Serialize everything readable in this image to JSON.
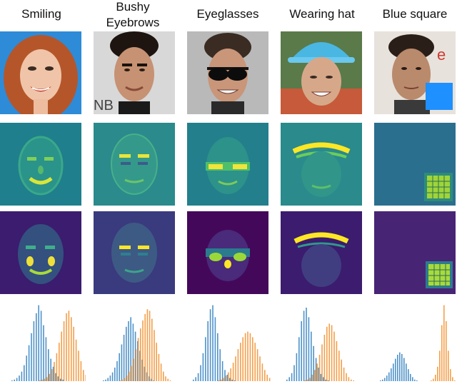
{
  "columns": [
    {
      "key": "smiling",
      "title": "Smiling",
      "title_lines": [
        "Smiling"
      ]
    },
    {
      "key": "bushy",
      "title": "Bushy Eyebrows",
      "title_lines": [
        "Bushy",
        "Eyebrows"
      ]
    },
    {
      "key": "eyeglasses",
      "title": "Eyeglasses",
      "title_lines": [
        "Eyeglasses"
      ]
    },
    {
      "key": "hat",
      "title": "Wearing hat",
      "title_lines": [
        "Wearing hat"
      ]
    },
    {
      "key": "blue",
      "title": "Blue square",
      "title_lines": [
        "Blue square"
      ]
    }
  ],
  "rows": [
    "photo",
    "saliency-map-viridis",
    "saliency-map-masked",
    "histogram"
  ],
  "colors": {
    "histogram_blue": "#2f7fbf",
    "histogram_orange": "#f28e2b",
    "blue_square": "#1e90ff",
    "viridis_low": "#440154",
    "viridis_mid": "#21918c",
    "viridis_high": "#fde725"
  },
  "histograms": [
    {
      "blue": [
        1,
        2,
        4,
        7,
        12,
        20,
        32,
        45,
        60,
        75,
        85,
        95,
        88,
        70,
        55,
        40,
        28,
        18,
        10,
        6,
        3,
        2
      ],
      "orange": [
        0,
        0,
        1,
        2,
        3,
        5,
        9,
        15,
        24,
        35,
        48,
        62,
        75,
        85,
        88,
        80,
        68,
        52,
        38,
        25,
        14,
        8,
        4,
        2,
        1
      ]
    },
    {
      "blue": [
        1,
        2,
        4,
        7,
        11,
        17,
        25,
        35,
        46,
        58,
        68,
        75,
        80,
        72,
        62,
        50,
        38,
        27,
        18,
        11,
        6,
        3,
        1
      ],
      "orange": [
        0,
        1,
        2,
        4,
        7,
        12,
        19,
        28,
        40,
        54,
        66,
        76,
        84,
        90,
        88,
        78,
        64,
        48,
        34,
        22,
        12,
        6,
        3,
        1
      ]
    },
    {
      "blue": [
        2,
        5,
        10,
        20,
        35,
        55,
        75,
        90,
        95,
        80,
        60,
        40,
        25,
        14,
        8,
        4,
        2,
        1
      ],
      "orange": [
        0,
        1,
        2,
        4,
        7,
        11,
        16,
        23,
        31,
        40,
        48,
        55,
        60,
        62,
        60,
        55,
        48,
        40,
        31,
        22,
        14,
        8,
        4,
        2,
        1
      ]
    },
    {
      "blue": [
        2,
        5,
        10,
        20,
        35,
        55,
        75,
        88,
        92,
        80,
        62,
        44,
        29,
        17,
        9,
        5,
        2,
        1
      ],
      "orange": [
        0,
        1,
        2,
        4,
        8,
        14,
        22,
        33,
        46,
        58,
        68,
        72,
        70,
        62,
        50,
        38,
        27,
        17,
        10,
        5,
        2,
        1
      ]
    },
    {
      "blue": [
        1,
        2,
        4,
        7,
        11,
        16,
        22,
        28,
        33,
        36,
        34,
        29,
        22,
        15,
        9,
        5,
        2,
        1
      ],
      "orange": [
        0,
        1,
        3,
        8,
        18,
        38,
        70,
        95,
        75,
        38,
        15,
        5,
        1
      ]
    }
  ]
}
